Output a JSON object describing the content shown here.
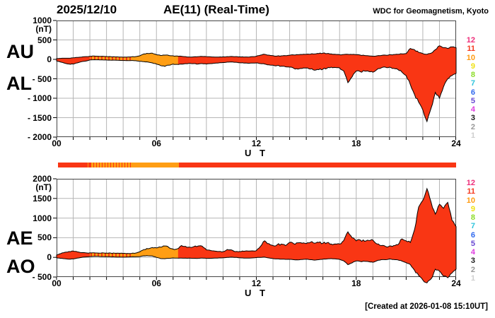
{
  "header": {
    "date": "2025/12/10",
    "title": "AE(11) (Real-Time)",
    "org": "WDC for Geomagnetism, Kyoto"
  },
  "footer": {
    "created": "[Created at 2026-01-08 15:10UT]"
  },
  "colors": {
    "fill_red": "#f93614",
    "fill_orange": "#ff9e14",
    "outline": "#000000",
    "grid": "#b5b5b5",
    "frame": "#444444",
    "background": "#ffffff"
  },
  "legend": {
    "items": [
      {
        "label": "12",
        "color": "#ee2e7a"
      },
      {
        "label": "11",
        "color": "#f5391f"
      },
      {
        "label": "10",
        "color": "#ff9b12"
      },
      {
        "label": "9",
        "color": "#efe112"
      },
      {
        "label": "8",
        "color": "#8cdc28"
      },
      {
        "label": "7",
        "color": "#2fc4dc"
      },
      {
        "label": "6",
        "color": "#2e68ee"
      },
      {
        "label": "5",
        "color": "#6747d2"
      },
      {
        "label": "4",
        "color": "#df3cdf"
      },
      {
        "label": "3",
        "color": "#1a1a1a"
      },
      {
        "label": "2",
        "color": "#989898"
      },
      {
        "label": "1",
        "color": "#cfcfcf"
      }
    ]
  },
  "quality_bar": {
    "segments": [
      {
        "from": 0,
        "to": 1.6,
        "type": "red"
      },
      {
        "from": 1.6,
        "to": 2.0,
        "type": "striped_red_orange"
      },
      {
        "from": 2.0,
        "to": 4.5,
        "type": "striped_orange_red"
      },
      {
        "from": 4.5,
        "to": 7.3,
        "type": "orange"
      },
      {
        "from": 7.3,
        "to": 24,
        "type": "red"
      }
    ]
  },
  "chart_data": {
    "type": "area",
    "title": "AE(11) (Real-Time) 2025/12/10",
    "xlabel": "U T",
    "x_unit": "hour of day (UT)",
    "x_start": 0,
    "x_end": 24,
    "x_step": 0.25,
    "x_ticks": [
      {
        "hour": 0,
        "label": "00"
      },
      {
        "hour": 6,
        "label": "06"
      },
      {
        "hour": 12,
        "label": "12"
      },
      {
        "hour": 18,
        "label": "18"
      },
      {
        "hour": 24,
        "label": "24"
      }
    ],
    "color_change_hours": {
      "striped_orange_from": 2.0,
      "solid_orange_from": 4.5,
      "red_from": 7.3
    },
    "panels": [
      {
        "name": "AU-AL",
        "unit": "(nT)",
        "left_labels": [
          "AU",
          "AL"
        ],
        "ylim": [
          -2000,
          1000
        ],
        "y_ticks": [
          {
            "value": 1000,
            "label": "1000"
          },
          {
            "value": 500,
            "label": "500"
          },
          {
            "value": 0,
            "label": "0"
          },
          {
            "value": -500,
            "label": "- 500"
          },
          {
            "value": -1000,
            "label": "- 1000"
          },
          {
            "value": -1500,
            "label": "- 1500"
          },
          {
            "value": -2000,
            "label": "- 2000"
          }
        ],
        "series": [
          {
            "name": "AU",
            "values": [
              20,
              25,
              30,
              30,
              40,
              50,
              60,
              70,
              80,
              85,
              80,
              80,
              75,
              70,
              65,
              60,
              55,
              60,
              65,
              70,
              90,
              140,
              150,
              160,
              120,
              100,
              110,
              100,
              90,
              85,
              80,
              70,
              60,
              65,
              70,
              75,
              70,
              65,
              60,
              60,
              65,
              70,
              75,
              70,
              65,
              60,
              60,
              70,
              80,
              110,
              130,
              110,
              95,
              85,
              90,
              95,
              105,
              115,
              120,
              125,
              130,
              135,
              140,
              150,
              160,
              150,
              140,
              130,
              120,
              125,
              130,
              125,
              120,
              110,
              100,
              90,
              80,
              90,
              100,
              110,
              120,
              125,
              130,
              140,
              150,
              280,
              250,
              180,
              150,
              130,
              160,
              250,
              350,
              300,
              280,
              320,
              300
            ]
          },
          {
            "name": "AL",
            "values": [
              -40,
              -70,
              -100,
              -120,
              -120,
              -90,
              -60,
              -45,
              -15,
              -10,
              -10,
              -15,
              -15,
              -20,
              -20,
              -25,
              -30,
              -30,
              -30,
              -35,
              -50,
              -60,
              -70,
              -90,
              -120,
              -160,
              -180,
              -150,
              -120,
              -130,
              -120,
              -110,
              -100,
              -110,
              -120,
              -110,
              -120,
              -110,
              -100,
              -90,
              -80,
              -70,
              -65,
              -75,
              -85,
              -95,
              -100,
              -95,
              -90,
              -110,
              -120,
              -140,
              -150,
              -160,
              -175,
              -190,
              -200,
              -230,
              -250,
              -235,
              -220,
              -250,
              -280,
              -265,
              -250,
              -225,
              -200,
              -210,
              -220,
              -300,
              -600,
              -450,
              -300,
              -320,
              -300,
              -310,
              -330,
              -260,
              -220,
              -200,
              -200,
              -230,
              -260,
              -330,
              -420,
              -650,
              -900,
              -1100,
              -1300,
              -1600,
              -1250,
              -850,
              -1000,
              -700,
              -500,
              -420,
              -360
            ]
          }
        ]
      },
      {
        "name": "AE-AO",
        "unit": "(nT)",
        "left_labels": [
          "AE",
          "AO"
        ],
        "ylim": [
          -500,
          2000
        ],
        "y_ticks": [
          {
            "value": 2000,
            "label": "2000"
          },
          {
            "value": 1500,
            "label": "1500"
          },
          {
            "value": 1000,
            "label": "1000"
          },
          {
            "value": 500,
            "label": "500"
          },
          {
            "value": 0,
            "label": "0"
          },
          {
            "value": -500,
            "label": "- 500"
          }
        ],
        "series": [
          {
            "name": "AE",
            "values": [
              60,
              95,
              130,
              150,
              160,
              140,
              120,
              115,
              115,
              115,
              110,
              115,
              110,
              110,
              105,
              105,
              100,
              100,
              100,
              110,
              140,
              200,
              220,
              250,
              240,
              260,
              290,
              250,
              210,
              215,
              300,
              280,
              260,
              275,
              290,
              285,
              190,
              175,
              160,
              150,
              145,
              200,
              190,
              145,
              150,
              155,
              160,
              165,
              170,
              280,
              420,
              350,
              300,
              320,
              340,
              300,
              380,
              345,
              370,
              360,
              350,
              385,
              360,
              380,
              360,
              375,
              340,
              340,
              340,
              430,
              650,
              500,
              420,
              440,
              410,
              430,
              440,
              340,
              300,
              280,
              290,
              300,
              320,
              470,
              420,
              380,
              700,
              1280,
              1450,
              1750,
              1400,
              1100,
              1350,
              1250,
              1400,
              950,
              780
            ]
          },
          {
            "name": "AO",
            "values": [
              -10,
              -25,
              -35,
              -45,
              -40,
              -20,
              0,
              10,
              20,
              25,
              25,
              20,
              20,
              15,
              10,
              8,
              5,
              10,
              15,
              15,
              20,
              40,
              40,
              35,
              0,
              -30,
              -35,
              -25,
              -15,
              -20,
              -20,
              -20,
              -20,
              -25,
              -25,
              -20,
              -25,
              -25,
              -20,
              -15,
              -10,
              0,
              5,
              0,
              -10,
              -20,
              -20,
              -15,
              -5,
              0,
              5,
              -15,
              -30,
              -40,
              -45,
              -50,
              -50,
              -60,
              -65,
              -55,
              -45,
              -60,
              -70,
              -60,
              -45,
              -40,
              -30,
              -40,
              -50,
              -90,
              -185,
              -140,
              -90,
              -105,
              -100,
              -110,
              -125,
              -85,
              -60,
              -60,
              -40,
              -55,
              -65,
              -95,
              -135,
              -185,
              -325,
              -460,
              -575,
              -650,
              -545,
              -300,
              -350,
              -480,
              -520,
              -400,
              -300
            ]
          }
        ]
      }
    ]
  }
}
